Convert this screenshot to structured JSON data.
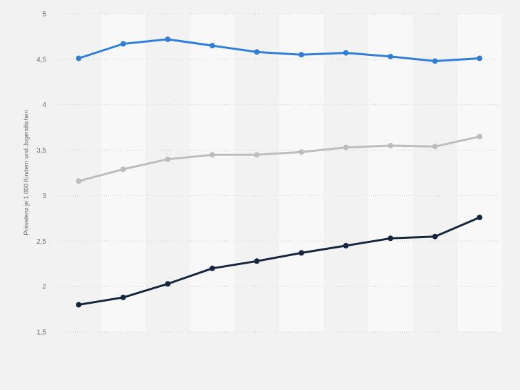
{
  "chart_data": {
    "type": "line",
    "title": "",
    "xlabel": "",
    "ylabel": "Prävalenz je 1.000 Kindern und Jugendlichen",
    "x": [
      1,
      2,
      3,
      4,
      5,
      6,
      7,
      8,
      9,
      10
    ],
    "ylim": [
      1.5,
      5
    ],
    "yticks": [
      "5",
      "4,5",
      "4",
      "3,5",
      "3",
      "2,5",
      "2",
      "1,5"
    ],
    "ytick_values": [
      5,
      4.5,
      4,
      3.5,
      3,
      2.5,
      2,
      1.5
    ],
    "grid": true,
    "series": [
      {
        "values": [
          4.51,
          4.67,
          4.72,
          4.65,
          4.58,
          4.55,
          4.57,
          4.53,
          4.48,
          4.51
        ],
        "color": "#2f7ed8"
      },
      {
        "values": [
          3.16,
          3.29,
          3.4,
          3.45,
          3.45,
          3.48,
          3.53,
          3.55,
          3.54,
          3.65
        ],
        "color": "#bdbdbd"
      },
      {
        "values": [
          1.8,
          1.88,
          2.03,
          2.2,
          2.28,
          2.37,
          2.45,
          2.53,
          2.55,
          2.76
        ],
        "color": "#14263e"
      }
    ]
  },
  "colors": {
    "background": "#f2f2f2",
    "band_light": "#f8f8f8",
    "grid": "#d4d4d4",
    "tick_text": "#666666"
  }
}
